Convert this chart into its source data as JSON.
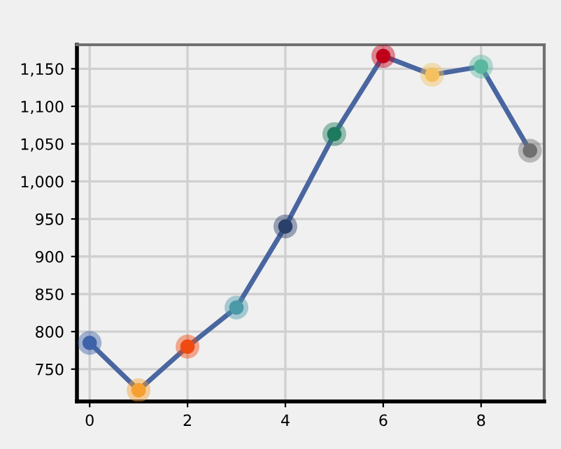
{
  "chart_data": {
    "type": "line",
    "x": [
      0,
      1,
      2,
      3,
      4,
      5,
      6,
      7,
      8,
      9
    ],
    "series": [
      {
        "color": "#4a66a0",
        "values": [
          785,
          722,
          780,
          832,
          940,
          1063,
          1167,
          1142,
          1153,
          1041
        ],
        "colors": [
          "#3f63a8",
          "#f5a030",
          "#f04a10",
          "#4a9aa8",
          "#2a3f6a",
          "#1e7a5e",
          "#c0001a",
          "#f5c060",
          "#5ab8a0",
          "#707070"
        ]
      }
    ],
    "xlim": [
      -0.26,
      9.29
    ],
    "xticks": [
      0,
      2,
      4,
      6,
      8
    ],
    "ylim": [
      707,
      1182
    ],
    "yticks": [
      750,
      800,
      850,
      900,
      950,
      {
        "value": 1000,
        "label": "1,000"
      },
      {
        "value": 1050,
        "label": "1,050"
      },
      {
        "value": 1100,
        "label": "1,100"
      },
      {
        "value": 1150,
        "label": "1,150"
      }
    ],
    "grid": true,
    "marker": "circle",
    "line_style": "solid"
  }
}
